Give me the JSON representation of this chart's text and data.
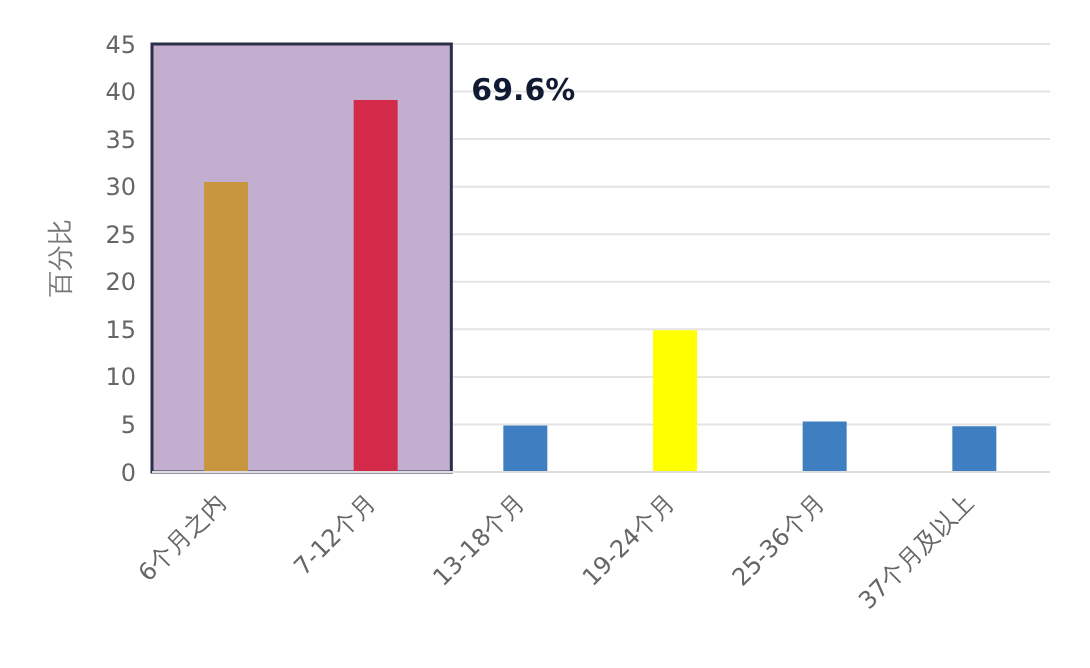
{
  "chart_data": {
    "type": "bar",
    "ylabel": "百分比",
    "categories": [
      "6个月之内",
      "7-12个月",
      "13-18个月",
      "19-24个月",
      "25-36个月",
      "37个月及以上"
    ],
    "values": [
      30.5,
      39.1,
      4.9,
      14.9,
      5.3,
      4.8
    ],
    "colors": [
      "#c8963e",
      "#d42a4a",
      "#3f7fc1",
      "#ffff00",
      "#3f7fc1",
      "#3f7fc1"
    ],
    "ylim": [
      0,
      45
    ],
    "yticks": [
      0,
      5,
      10,
      15,
      20,
      25,
      30,
      35,
      40,
      45
    ],
    "grid": "y",
    "bands": [
      {
        "axis": "x",
        "from": "6个月之内",
        "to": "7-12个月",
        "label": "69.6%",
        "color": "#c4aed0"
      }
    ]
  }
}
